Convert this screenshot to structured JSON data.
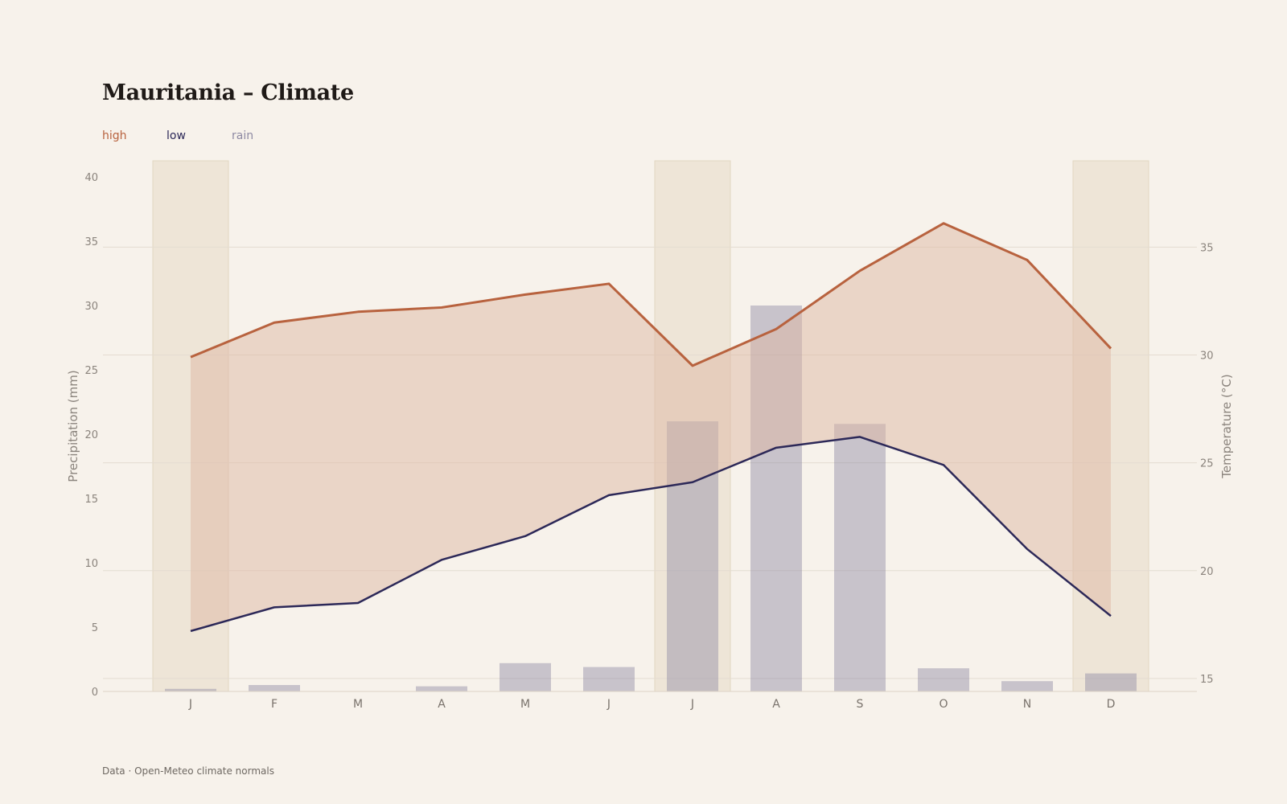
{
  "title": "Mauritania – Climate",
  "legend": {
    "high": "high",
    "low": "low",
    "rain": "rain"
  },
  "source": "Data · Open-Meteo climate normals",
  "colors": {
    "background": "#f7f2eb",
    "high": "#b8623e",
    "low": "#2c2858",
    "rain": "#8e8aa3",
    "band_fill": "#ddb8a3",
    "highlight": "#e9dfcf",
    "grid": "#e4dcd1"
  },
  "chart_data": {
    "type": "bar+line",
    "categories": [
      "J",
      "F",
      "M",
      "A",
      "M",
      "J",
      "J",
      "A",
      "S",
      "O",
      "N",
      "D"
    ],
    "highlighted_months": [
      0,
      6,
      11
    ],
    "series": [
      {
        "name": "high",
        "axis": "right",
        "kind": "line",
        "values": [
          29.9,
          31.5,
          32.0,
          32.2,
          32.8,
          33.3,
          29.5,
          31.2,
          33.9,
          36.1,
          34.4,
          30.3
        ]
      },
      {
        "name": "low",
        "axis": "right",
        "kind": "line",
        "values": [
          17.2,
          18.3,
          18.5,
          20.5,
          21.6,
          23.5,
          24.1,
          25.7,
          26.2,
          24.9,
          21.0,
          17.9
        ]
      },
      {
        "name": "rain",
        "axis": "left",
        "kind": "bar",
        "values": [
          0.2,
          0.5,
          0.0,
          0.4,
          2.2,
          1.9,
          21.0,
          30.0,
          20.8,
          1.8,
          0.8,
          1.4
        ]
      }
    ],
    "y_left": {
      "label": "Precipitation (mm)",
      "min": 0,
      "max": 40,
      "ticks": [
        0,
        5,
        10,
        15,
        20,
        25,
        30,
        35,
        40
      ]
    },
    "y_right": {
      "label": "Temperature (°C)",
      "min": 14.4,
      "max": 39,
      "ticks": [
        15,
        20,
        25,
        30,
        35
      ]
    },
    "grid": true
  }
}
